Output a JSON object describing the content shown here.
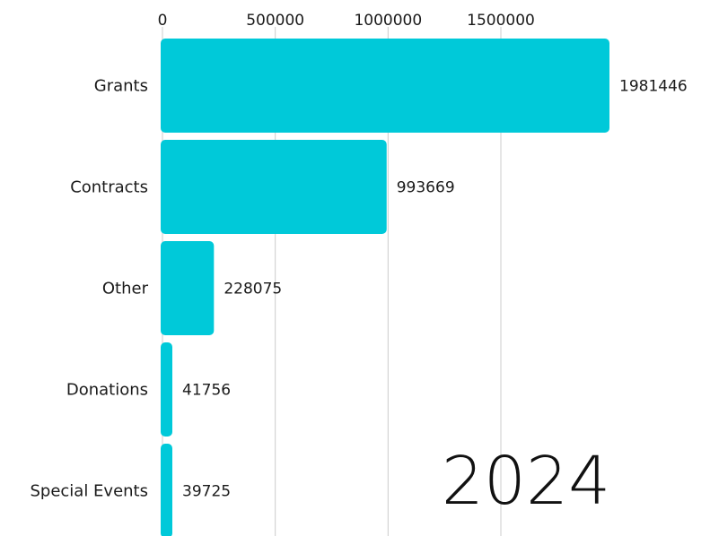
{
  "chart_data": {
    "type": "bar",
    "orientation": "horizontal",
    "categories": [
      "Grants",
      "Contracts",
      "Other",
      "Donations",
      "Special Events"
    ],
    "values": [
      1981446,
      993669,
      228075,
      41756,
      39725
    ],
    "x_ticks": [
      0,
      500000,
      1000000,
      1500000
    ],
    "xlim": [
      0,
      1981446
    ],
    "axis_position": "top",
    "grid": true,
    "bar_color": "#00c9d9",
    "year": "2024"
  }
}
